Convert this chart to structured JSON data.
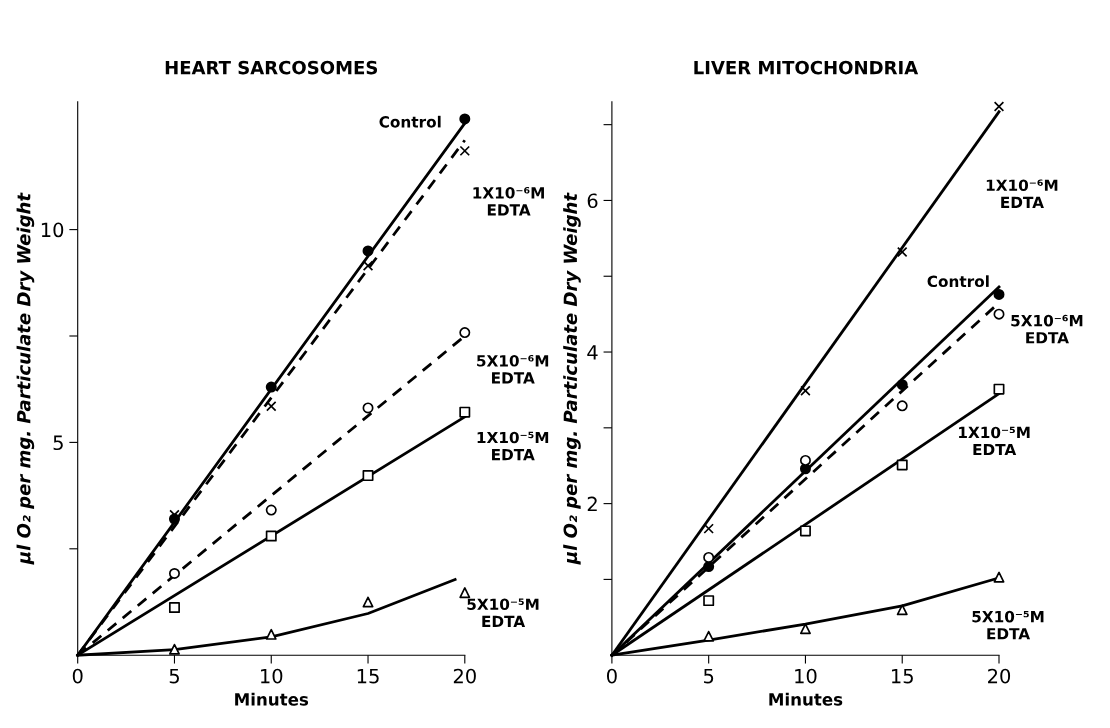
{
  "chart_data": [
    {
      "type": "line",
      "title": "HEART SARCOSOMES",
      "xlabel": "Minutes",
      "ylabel": "μl O₂ per mg. Particulate Dry Weight",
      "x": [
        5,
        10,
        15,
        20
      ],
      "xlim": [
        0,
        20
      ],
      "xticks": [
        0,
        5,
        10,
        15,
        20
      ],
      "ylim": [
        0,
        13
      ],
      "yticks": [
        {
          "value": 2.5,
          "label": null
        },
        5,
        {
          "value": 7.5,
          "label": null
        },
        10
      ],
      "grid": false,
      "legend": false,
      "series": [
        {
          "type": "scatter",
          "marker": "circle",
          "color": "#000000",
          "values": [
            3.2,
            6.3,
            9.5,
            12.6
          ]
        },
        {
          "name": "Control",
          "color": "#000000",
          "line_style": "solid",
          "x": [
            0,
            20
          ],
          "values": [
            0,
            12.5
          ]
        },
        {
          "type": "scatter",
          "marker": "cross",
          "color": "#000000",
          "values": [
            3.3,
            5.85,
            9.15,
            11.85
          ]
        },
        {
          "name": "1X10⁻⁶M\nEDTA",
          "color": "#000000",
          "line_style": "dashed",
          "x": [
            0,
            20
          ],
          "values": [
            0,
            12.1
          ]
        },
        {
          "type": "scatter",
          "marker": "circle",
          "color": "#ffffff",
          "values": [
            1.92,
            3.41,
            5.81,
            7.58
          ]
        },
        {
          "name": "5X10⁻⁶M\nEDTA",
          "color": "#000000",
          "line_style": "dashed",
          "x": [
            0,
            20
          ],
          "values": [
            0,
            7.5
          ]
        },
        {
          "type": "scatter",
          "marker": "square",
          "color": "#ffffff",
          "values": [
            1.12,
            2.8,
            4.22,
            5.71
          ]
        },
        {
          "name": "1X10⁻⁵M\nEDTA",
          "color": "#000000",
          "line_style": "solid",
          "x": [
            0,
            20
          ],
          "values": [
            0,
            5.6
          ]
        },
        {
          "type": "scatter",
          "marker": "triangle",
          "color": "#ffffff",
          "values": [
            0.14,
            0.49,
            1.25,
            1.47
          ]
        },
        {
          "name": "5X10⁻⁵M\nEDTA",
          "color": "#000000",
          "line_style": "solid",
          "x": [
            0,
            5,
            10,
            15,
            19.5
          ],
          "values": [
            0,
            0.13,
            0.43,
            0.98,
            1.78
          ]
        }
      ]
    },
    {
      "type": "line",
      "title": "LIVER MITOCHONDRIA",
      "xlabel": "Minutes",
      "ylabel": "μl O₂ per mg. Particulate Dry Weight",
      "x": [
        5,
        10,
        15,
        20
      ],
      "xlim": [
        0,
        20
      ],
      "xticks": [
        0,
        5,
        10,
        15,
        20
      ],
      "ylim": [
        0,
        7.3
      ],
      "yticks": [
        {
          "value": 1,
          "label": null
        },
        2,
        {
          "value": 3,
          "label": null
        },
        4,
        {
          "value": 5,
          "label": null
        },
        6,
        {
          "value": 7,
          "label": null
        }
      ],
      "grid": false,
      "legend": false,
      "series": [
        {
          "type": "scatter",
          "marker": "cross",
          "color": "#000000",
          "values": [
            1.67,
            3.49,
            5.32,
            7.24
          ]
        },
        {
          "name": "1X10⁻⁶M\nEDTA",
          "color": "#000000",
          "line_style": "solid",
          "x": [
            0,
            20
          ],
          "values": [
            0,
            7.17
          ]
        },
        {
          "type": "scatter",
          "marker": "circle",
          "color": "#000000",
          "values": [
            1.17,
            2.46,
            3.57,
            4.76
          ]
        },
        {
          "name": "Control",
          "color": "#000000",
          "line_style": "solid",
          "x": [
            0,
            20
          ],
          "values": [
            0,
            4.86
          ]
        },
        {
          "type": "scatter",
          "marker": "circle",
          "color": "#ffffff",
          "values": [
            1.29,
            2.57,
            3.29,
            4.5
          ]
        },
        {
          "name": "5X10⁻⁶M\nEDTA",
          "color": "#000000",
          "line_style": "dashed",
          "x": [
            0,
            20
          ],
          "values": [
            0,
            4.65
          ]
        },
        {
          "type": "scatter",
          "marker": "square",
          "color": "#ffffff",
          "values": [
            0.72,
            1.64,
            2.51,
            3.51
          ]
        },
        {
          "name": "1X10⁻⁵M\nEDTA",
          "color": "#000000",
          "line_style": "solid",
          "x": [
            0,
            20
          ],
          "values": [
            0,
            3.45
          ]
        },
        {
          "type": "scatter",
          "marker": "triangle",
          "color": "#ffffff",
          "values": [
            0.25,
            0.35,
            0.6,
            1.03
          ]
        },
        {
          "name": "5X10⁻⁵M\nEDTA",
          "color": "#000000",
          "line_style": "solid",
          "x": [
            0,
            5,
            10,
            15,
            20
          ],
          "values": [
            0,
            0.2,
            0.41,
            0.65,
            1.02
          ]
        }
      ]
    }
  ]
}
